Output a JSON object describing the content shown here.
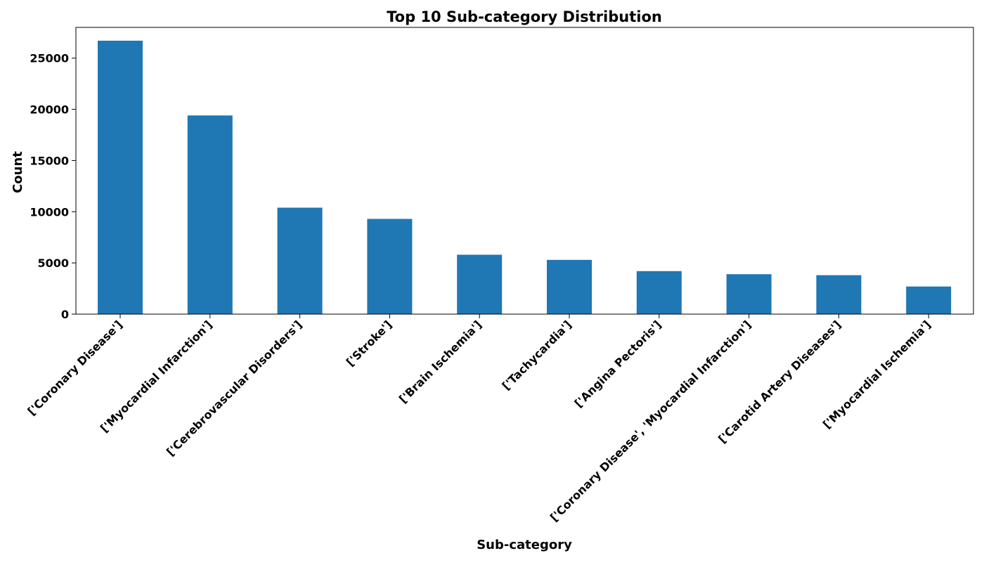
{
  "chart_data": {
    "type": "bar",
    "title": "Top 10 Sub-category Distribution",
    "xlabel": "Sub-category",
    "ylabel": "Count",
    "categories": [
      "['Coronary Disease']",
      "['Myocardial Infarction']",
      "['Cerebrovascular Disorders']",
      "['Stroke']",
      "['Brain Ischemia']",
      "['Tachycardia']",
      "['Angina Pectoris']",
      "['Coronary Disease', 'Myocardial Infarction']",
      "['Carotid Artery Diseases']",
      "['Myocardial Ischemia']"
    ],
    "values": [
      26700,
      19400,
      10400,
      9300,
      5800,
      5300,
      4200,
      3900,
      3800,
      2700
    ],
    "ylim": [
      0,
      28000
    ],
    "yticks": [
      0,
      5000,
      10000,
      15000,
      20000,
      25000
    ],
    "grid": false,
    "legend": "none",
    "bar_color": "#1f77b4"
  }
}
